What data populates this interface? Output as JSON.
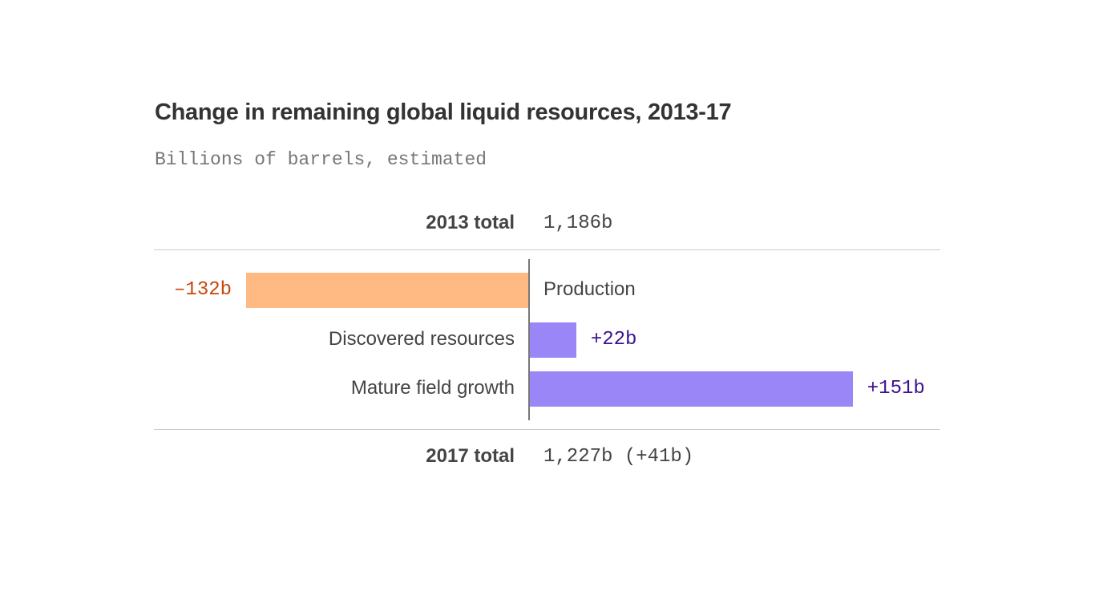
{
  "chart_data": {
    "type": "bar",
    "orientation": "horizontal",
    "title": "Change in remaining global liquid resources, 2013-17",
    "subtitle": "Billions of barrels, estimated",
    "start": {
      "label": "2013 total",
      "value_label": "1,186b",
      "value": 1186
    },
    "end": {
      "label": "2017 total",
      "value_label": "1,227b (+41b)",
      "value": 1227
    },
    "categories": [
      "Production",
      "Discovered resources",
      "Mature field growth"
    ],
    "values": [
      -132,
      22,
      151
    ],
    "value_labels": [
      "–132b",
      "+22b",
      "+151b"
    ],
    "colors": {
      "negative_bar": "#ffb982",
      "negative_text": "#c8470c",
      "positive_bar": "#9a86f7",
      "positive_text": "#3b1190"
    }
  }
}
